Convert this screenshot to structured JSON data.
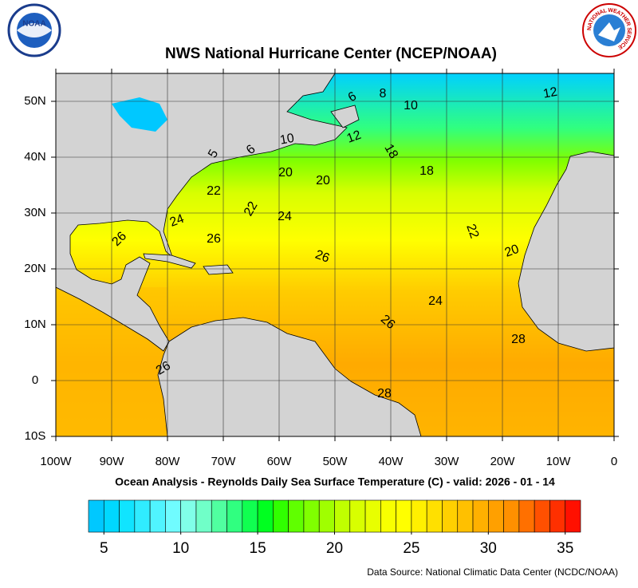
{
  "header": {
    "title": "NWS National Hurricane Center (NCEP/NOAA)",
    "noaa_logo": "NOAA",
    "nws_logo": "NATIONAL WEATHER SERVICE"
  },
  "chart_data": {
    "type": "map",
    "xlim": [
      -100,
      0
    ],
    "ylim": [
      -10,
      55
    ],
    "xticks": [
      {
        "value": -100,
        "label": "100W"
      },
      {
        "value": -90,
        "label": "90W"
      },
      {
        "value": -80,
        "label": "80W"
      },
      {
        "value": -70,
        "label": "70W"
      },
      {
        "value": -60,
        "label": "60W"
      },
      {
        "value": -50,
        "label": "50W"
      },
      {
        "value": -40,
        "label": "40W"
      },
      {
        "value": -30,
        "label": "30W"
      },
      {
        "value": -20,
        "label": "20W"
      },
      {
        "value": -10,
        "label": "10W"
      },
      0
    ],
    "yticks": [
      {
        "value": -10,
        "label": "10S"
      },
      0,
      {
        "value": 10,
        "label": "10N"
      },
      {
        "value": 20,
        "label": "20N"
      },
      {
        "value": 30,
        "label": "30N"
      },
      {
        "value": 40,
        "label": "40N"
      },
      {
        "value": 50,
        "label": "50N"
      }
    ],
    "grid": true,
    "contour_labels": [
      6,
      8,
      10,
      12,
      5,
      6,
      10,
      12,
      18,
      20,
      20,
      18,
      22,
      22,
      24,
      24,
      26,
      26,
      22,
      26,
      20,
      24,
      26,
      28,
      26,
      28
    ]
  },
  "subtitle": "Ocean Analysis - Reynolds Daily Sea Surface Temperature (C) - valid: 2026 - 01 - 14",
  "colorbar": {
    "lim": [
      4,
      36
    ],
    "ticks": [
      5,
      10,
      15,
      20,
      25,
      30,
      35
    ],
    "colors": [
      "#00c8ff",
      "#00d8ff",
      "#10e4ff",
      "#30ecff",
      "#50f4ff",
      "#70fcff",
      "#80ffe8",
      "#70ffc8",
      "#50ffa0",
      "#30ff80",
      "#10ff50",
      "#00ff20",
      "#30ff00",
      "#60ff00",
      "#80ff00",
      "#a0ff00",
      "#c0ff00",
      "#d8ff00",
      "#e8ff00",
      "#f8ff00",
      "#ffff00",
      "#fff000",
      "#ffe000",
      "#ffd000",
      "#ffc000",
      "#ffb000",
      "#ffa000",
      "#ff9000",
      "#ff7000",
      "#ff5000",
      "#ff3000",
      "#ff1000"
    ]
  },
  "source": "Data Source: National Climatic Data Center (NCDC/NOAA)"
}
